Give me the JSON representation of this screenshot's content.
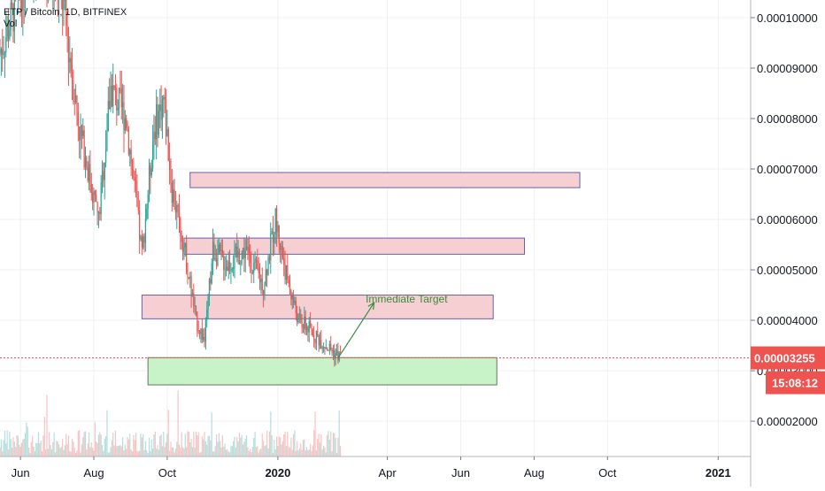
{
  "header": {
    "symbol_line": "ETP / Bitcoin, 1D, BITFINEX",
    "volume_label": "Vol"
  },
  "colors": {
    "up": "#26a69a",
    "down": "#ef5350",
    "zone_red_fill": "#f6cfd3",
    "zone_red_border": "#6a5fa8",
    "zone_green_fill": "#c8f2c8",
    "zone_green_border": "#5d7b5d",
    "annotation_green": "#3c8c3c",
    "price_line": "#ef5350",
    "grid": "#eef0f3",
    "axis_text": "#131722"
  },
  "chart_data": {
    "type": "candlestick",
    "title": "ETP / Bitcoin, 1D, BITFINEX",
    "y_axis": {
      "tick_labels": [
        "0.00010000",
        "0.00009000",
        "0.00008000",
        "0.00007000",
        "0.00006000",
        "0.00005000",
        "0.00004000",
        "0.00003000",
        "0.00002000"
      ],
      "tick_values": [
        0.0001,
        9e-05,
        8e-05,
        7e-05,
        6e-05,
        5e-05,
        4e-05,
        3e-05,
        2e-05
      ],
      "range": [
        1.3e-05,
        0.0001035
      ]
    },
    "x_axis": {
      "tick_labels": [
        {
          "label": "Jun",
          "date": "2019-06-01",
          "bold": false
        },
        {
          "label": "Aug",
          "date": "2019-08-01",
          "bold": false
        },
        {
          "label": "Oct",
          "date": "2019-10-01",
          "bold": false
        },
        {
          "label": "2020",
          "date": "2020-01-01",
          "bold": true
        },
        {
          "label": "Apr",
          "date": "2020-04-01",
          "bold": false
        },
        {
          "label": "Jun",
          "date": "2020-06-01",
          "bold": false
        },
        {
          "label": "Aug",
          "date": "2020-08-01",
          "bold": false
        },
        {
          "label": "Oct",
          "date": "2020-10-01",
          "bold": false
        },
        {
          "label": "2021",
          "date": "2021-01-01",
          "bold": true
        }
      ],
      "range": [
        "2019-05-15",
        "2021-01-28"
      ]
    },
    "current_price": {
      "value": 3.255e-05,
      "label": "0.00003255",
      "countdown": "15:08:12"
    },
    "zones": [
      {
        "kind": "resistance",
        "start": "2019-10-20",
        "end": "2020-09-08",
        "low": 6.63e-05,
        "high": 6.93e-05
      },
      {
        "kind": "resistance",
        "start": "2019-10-15",
        "end": "2020-07-24",
        "low": 5.31e-05,
        "high": 5.63e-05
      },
      {
        "kind": "resistance",
        "start": "2019-09-10",
        "end": "2020-06-28",
        "low": 4.03e-05,
        "high": 4.5e-05
      },
      {
        "kind": "support",
        "start": "2019-09-15",
        "end": "2020-07-01",
        "low": 2.72e-05,
        "high": 3.26e-05
      }
    ],
    "annotations": [
      {
        "text": "Immediate Target",
        "date": "2020-04-17",
        "value": 4.35e-05
      },
      {
        "type": "arrow",
        "from_date": "2020-02-20",
        "from_value": 3.25e-05,
        "to_date": "2020-03-21",
        "to_value": 4.35e-05
      }
    ],
    "candles": {
      "start": "2019-05-15",
      "end": "2020-02-22",
      "anchors": [
        {
          "date": "2019-05-15",
          "value": 9.3e-05
        },
        {
          "date": "2019-06-10",
          "value": 0.000112
        },
        {
          "date": "2019-07-05",
          "value": 0.000105
        },
        {
          "date": "2019-07-20",
          "value": 7.8e-05
        },
        {
          "date": "2019-08-05",
          "value": 6e-05
        },
        {
          "date": "2019-08-15",
          "value": 8.6e-05
        },
        {
          "date": "2019-08-28",
          "value": 8e-05
        },
        {
          "date": "2019-09-10",
          "value": 5.3e-05
        },
        {
          "date": "2019-09-20",
          "value": 7.8e-05
        },
        {
          "date": "2019-09-28",
          "value": 8.4e-05
        },
        {
          "date": "2019-10-05",
          "value": 6.6e-05
        },
        {
          "date": "2019-10-14",
          "value": 5.6e-05
        },
        {
          "date": "2019-10-25",
          "value": 4e-05
        },
        {
          "date": "2019-11-01",
          "value": 3.6e-05
        },
        {
          "date": "2019-11-08",
          "value": 5.4e-05
        },
        {
          "date": "2019-11-20",
          "value": 5.1e-05
        },
        {
          "date": "2019-12-05",
          "value": 5.4e-05
        },
        {
          "date": "2019-12-20",
          "value": 4.7e-05
        },
        {
          "date": "2019-12-30",
          "value": 6e-05
        },
        {
          "date": "2020-01-08",
          "value": 4.9e-05
        },
        {
          "date": "2020-01-18",
          "value": 4e-05
        },
        {
          "date": "2020-01-28",
          "value": 3.8e-05
        },
        {
          "date": "2020-02-10",
          "value": 3.5e-05
        },
        {
          "date": "2020-02-22",
          "value": 3.26e-05
        }
      ]
    }
  }
}
